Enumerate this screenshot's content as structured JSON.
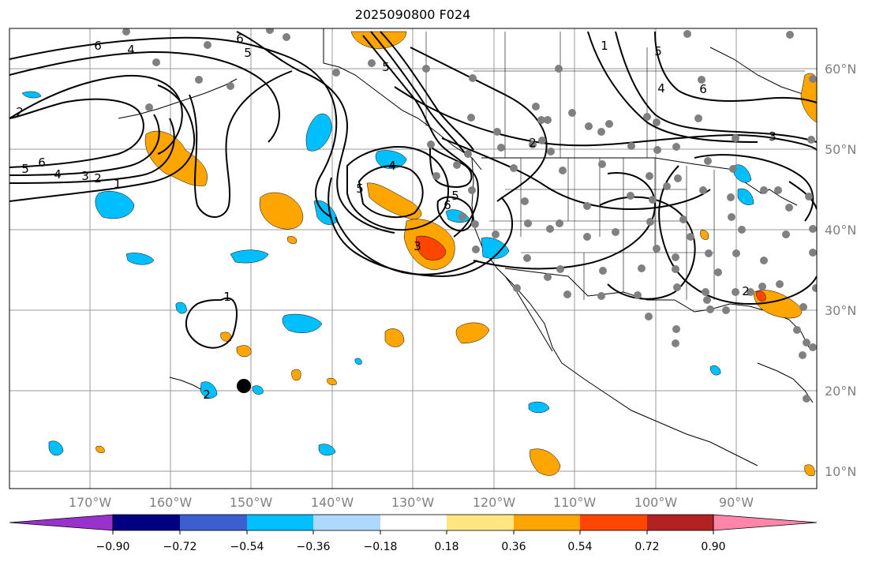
{
  "title": "2025090800 F024",
  "lat_labels": [
    "60°N",
    "50°N",
    "40°N",
    "30°N",
    "20°N",
    "10°N"
  ],
  "lon_labels": [
    "170°W",
    "160°W",
    "150°W",
    "140°W",
    "130°W",
    "120°W",
    "110°W",
    "100°W",
    "90°W"
  ],
  "colorbar": {
    "ticks": [
      "−0.90",
      "−0.72",
      "−0.54",
      "−0.36",
      "−0.18",
      "0.18",
      "0.36",
      "0.54",
      "0.72",
      "0.90"
    ],
    "colors": [
      "#9932cc",
      "#000080",
      "#3b5fcf",
      "#00bfff",
      "#add8ff",
      "#ffffff",
      "#ffe680",
      "#ffa500",
      "#ff4500",
      "#b22222",
      "#ff85ab"
    ]
  },
  "colors": {
    "orange": "#ffa500",
    "red": "#ff4500",
    "cyan": "#00bfff",
    "station": "#808080",
    "contour": "#000000"
  },
  "contour_labels": [
    "6",
    "4",
    "2",
    "6",
    "5",
    "5",
    "6",
    "4",
    "3",
    "2",
    "1",
    "4",
    "5",
    "5",
    "6",
    "3",
    "2",
    "5",
    "1",
    "5",
    "4",
    "6",
    "3",
    "2",
    "1",
    "2"
  ]
}
